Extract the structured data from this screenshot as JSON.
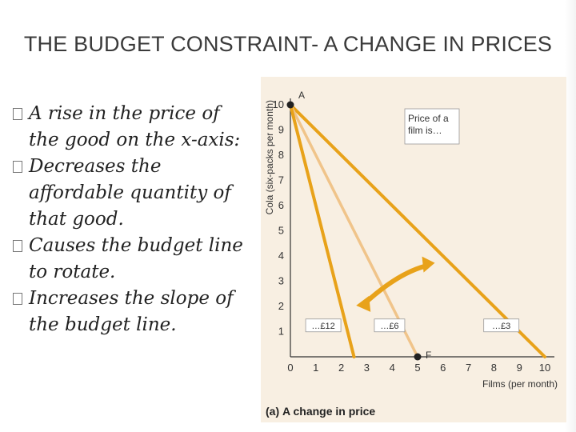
{
  "slide": {
    "title": "THE BUDGET CONSTRAINT- A CHANGE IN PRICES",
    "bullets": [
      "A rise in the price of the good on the x-axis:",
      " Decreases the affordable quantity of that good.",
      " Causes the budget line to rotate.",
      {
        "pre": "Increases the ",
        "em": "slope",
        "post": " of the budget line."
      }
    ]
  },
  "figure": {
    "caption_prefix": "(a)",
    "caption_text": "A change in price",
    "box_label": "Price of a film is…"
  },
  "chart_data": {
    "type": "line",
    "xlabel": "Films (per month)",
    "ylabel": "Cola (six-packs per month)",
    "xlim": [
      0,
      10
    ],
    "ylim": [
      0,
      10
    ],
    "xticks": [
      0,
      1,
      2,
      3,
      4,
      5,
      6,
      7,
      8,
      9,
      10
    ],
    "yticks": [
      1,
      2,
      3,
      4,
      5,
      6,
      7,
      8,
      9,
      10
    ],
    "series": [
      {
        "name": "…£3",
        "x": [
          0,
          10
        ],
        "y": [
          10,
          0
        ],
        "color": "#e8a21a"
      },
      {
        "name": "…£6",
        "x": [
          0,
          5
        ],
        "y": [
          10,
          0
        ],
        "color": "#f0c48a"
      },
      {
        "name": "…£12",
        "x": [
          0,
          2.5
        ],
        "y": [
          10,
          0
        ],
        "color": "#e8a21a"
      }
    ],
    "points": [
      {
        "label": "A",
        "x": 0,
        "y": 10
      },
      {
        "label": "F",
        "x": 5,
        "y": 0
      }
    ],
    "colors": {
      "accent": "#e8a21a",
      "light": "#f0c48a",
      "background": "#f8efe2"
    }
  }
}
